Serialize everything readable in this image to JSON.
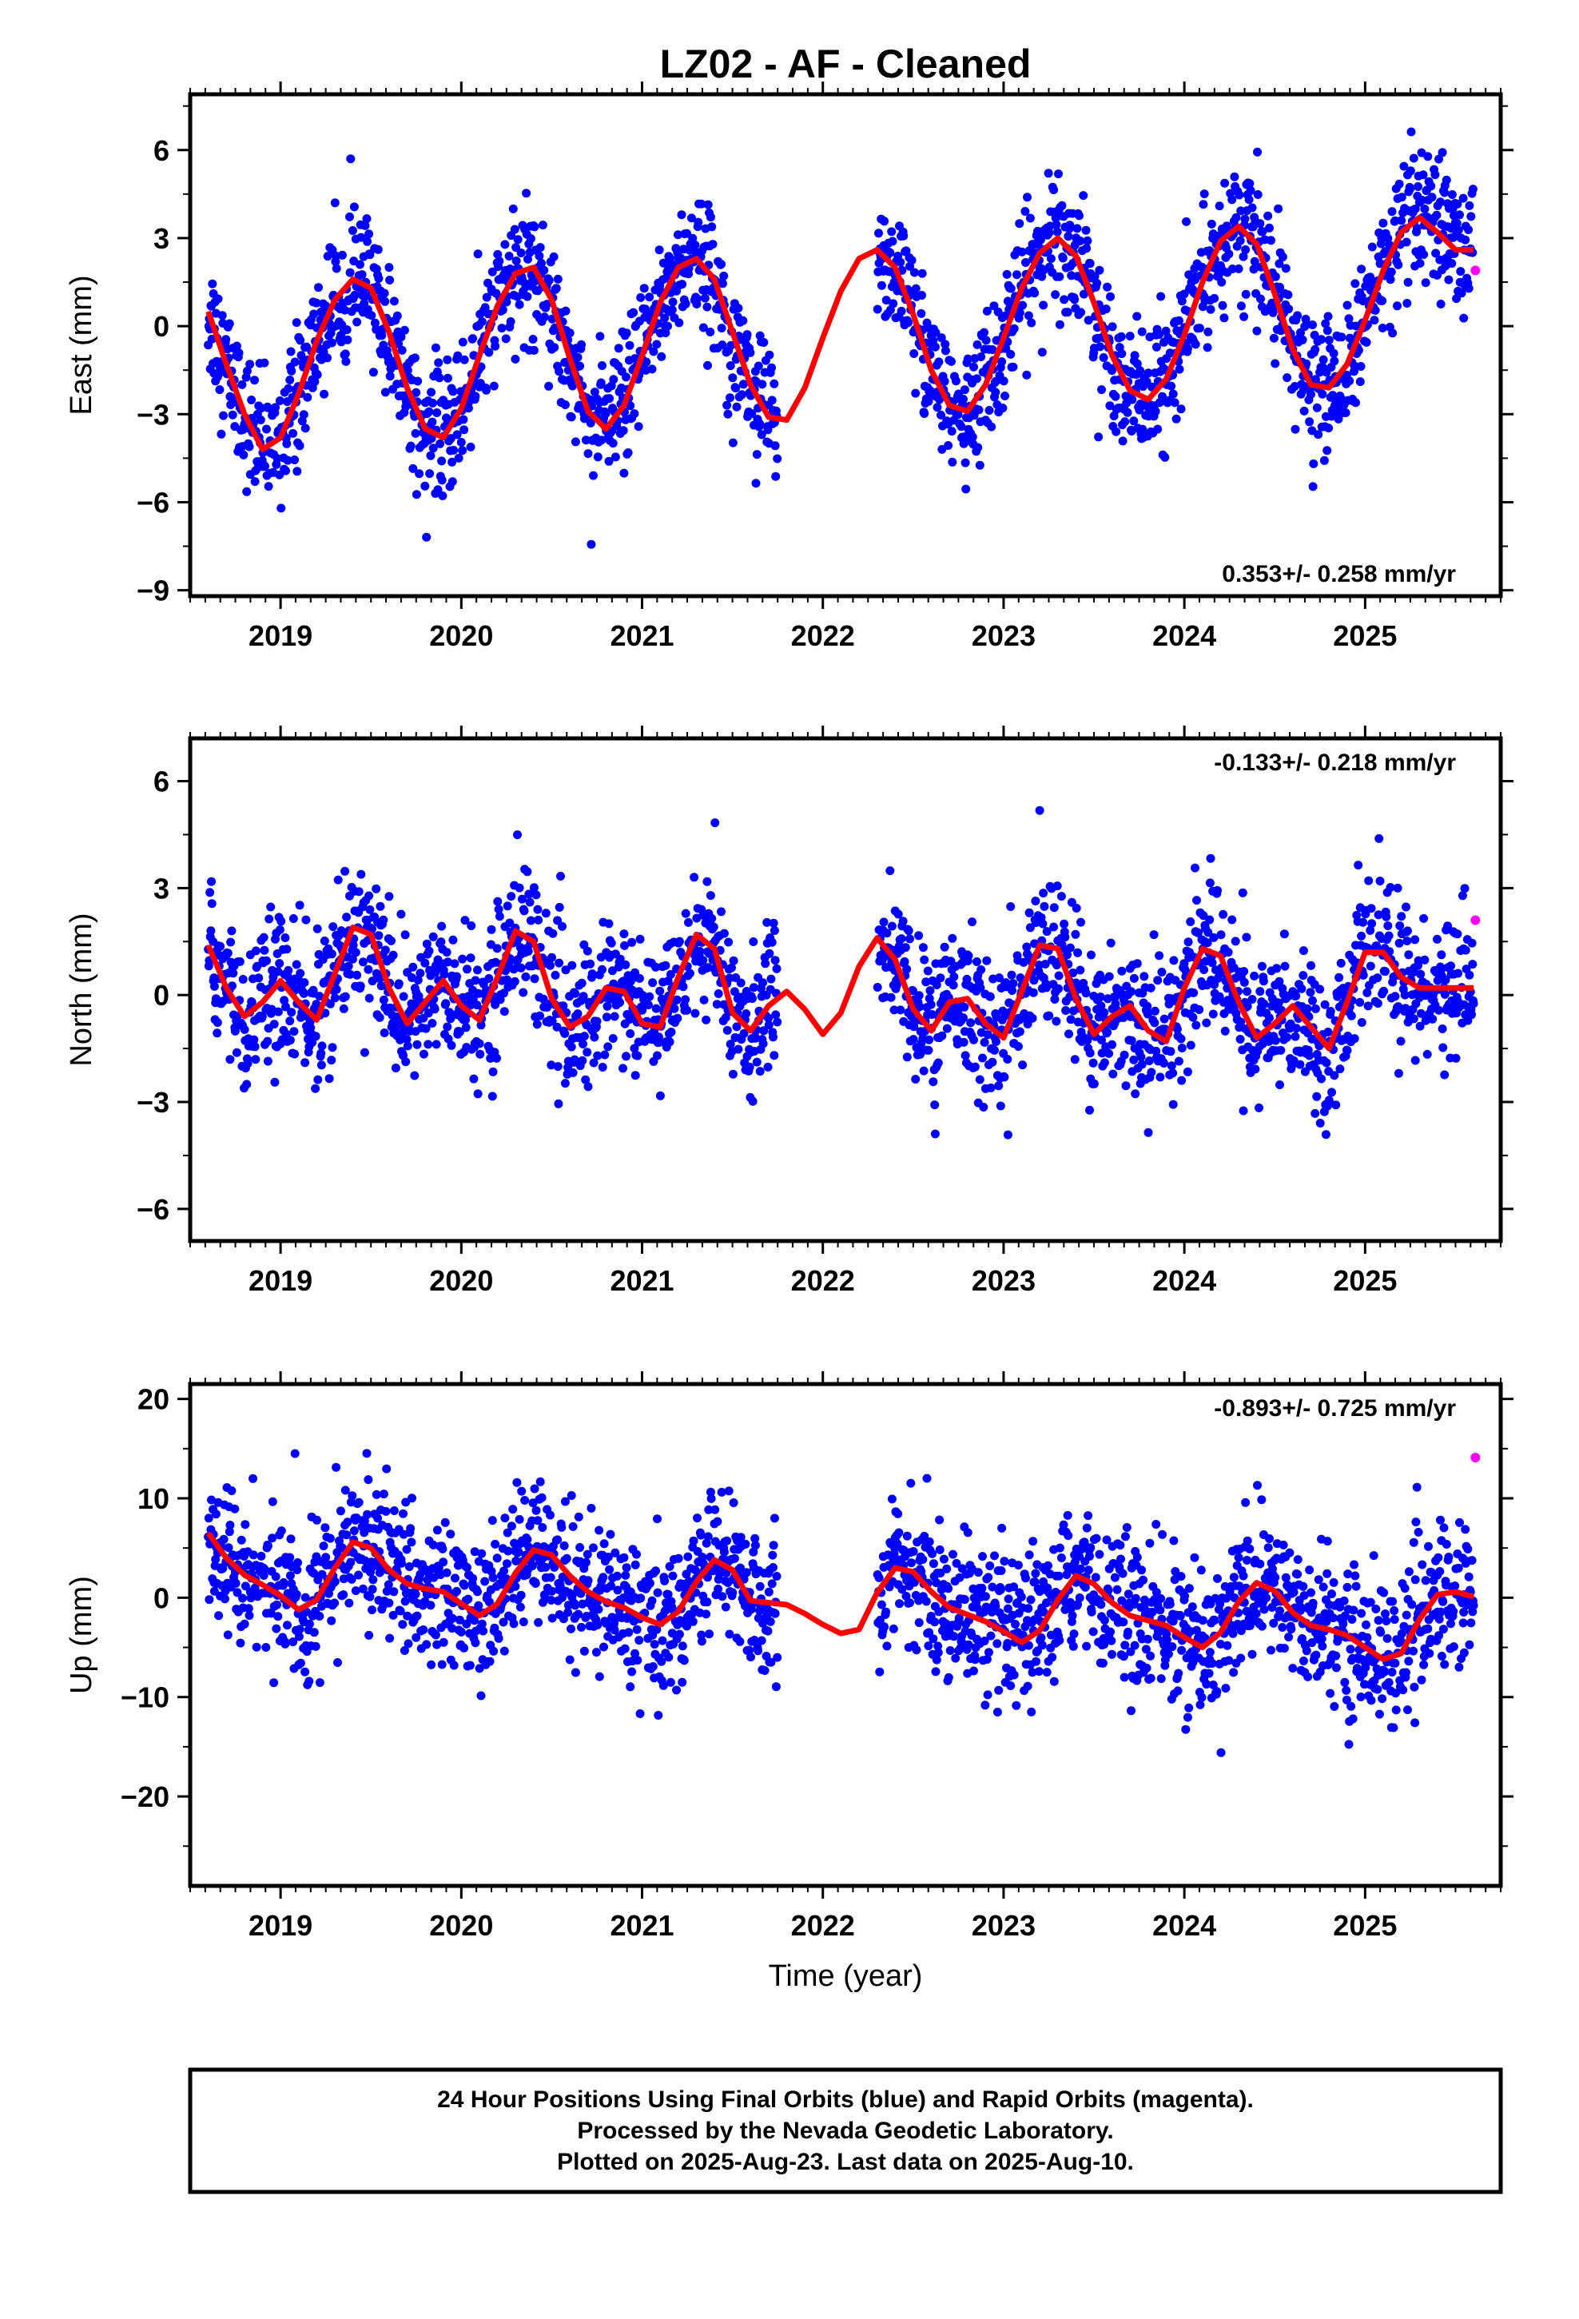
{
  "title": "LZ02  - AF - Cleaned",
  "x_axis_label": "Time (year)",
  "footer": {
    "lines": [
      "24 Hour Positions Using Final Orbits (blue) and Rapid Orbits (magenta).",
      "Processed by the Nevada Geodetic Laboratory.",
      "Plotted on 2025-Aug-23. Last data on 2025-Aug-10."
    ]
  },
  "colors": {
    "final_orbits": "#0000ff",
    "rapid_orbits": "#ff00ff",
    "model_fit": "#ff0000",
    "frame": "#000000"
  },
  "chart_data": [
    {
      "type": "scatter",
      "component": "east",
      "ylabel": "East (mm)",
      "ylim": [
        -9.2,
        7.9
      ],
      "yticks": [
        6,
        3,
        0,
        -3,
        -6,
        -9
      ],
      "ytick_labels": [
        "6",
        "3",
        "0",
        "−3",
        "−6",
        "−9"
      ],
      "xlim": [
        2018.5,
        2025.75
      ],
      "xticks": [
        2019,
        2020,
        2021,
        2022,
        2023,
        2024,
        2025
      ],
      "xtick_labels": [
        "2019",
        "2020",
        "2021",
        "2022",
        "2023",
        "2024",
        "2025"
      ],
      "rate_text": "0.353+/- 0.258 mm/yr",
      "rate_placement": "bottom-right",
      "data_gap": [
        2021.75,
        2022.3
      ],
      "model": {
        "name": "model fit",
        "x": [
          2018.6,
          2018.7,
          2018.8,
          2018.9,
          2019.0,
          2019.1,
          2019.2,
          2019.3,
          2019.4,
          2019.5,
          2019.6,
          2019.7,
          2019.8,
          2019.9,
          2020.0,
          2020.1,
          2020.2,
          2020.3,
          2020.4,
          2020.5,
          2020.6,
          2020.7,
          2020.8,
          2020.9,
          2021.0,
          2021.1,
          2021.2,
          2021.3,
          2021.4,
          2021.5,
          2021.6,
          2021.7,
          2021.8,
          2021.9,
          2022.0,
          2022.1,
          2022.2,
          2022.3,
          2022.4,
          2022.5,
          2022.6,
          2022.7,
          2022.8,
          2022.9,
          2023.0,
          2023.1,
          2023.2,
          2023.3,
          2023.4,
          2023.5,
          2023.6,
          2023.7,
          2023.8,
          2023.9,
          2024.0,
          2024.1,
          2024.2,
          2024.3,
          2024.4,
          2024.5,
          2024.6,
          2024.7,
          2024.8,
          2024.9,
          2025.0,
          2025.1,
          2025.2,
          2025.3,
          2025.4,
          2025.5,
          2025.6
        ],
        "y": [
          0.5,
          -1.3,
          -3.0,
          -4.2,
          -3.8,
          -2.3,
          -0.5,
          0.9,
          1.6,
          1.3,
          -0.2,
          -2.1,
          -3.5,
          -3.8,
          -2.8,
          -1.0,
          0.7,
          1.8,
          2.0,
          0.9,
          -1.1,
          -2.9,
          -3.5,
          -2.7,
          -1.0,
          0.8,
          2.0,
          2.3,
          1.6,
          -0.2,
          -2.0,
          -3.1,
          -3.2,
          -2.1,
          -0.4,
          1.2,
          2.3,
          2.6,
          2.0,
          0.4,
          -1.5,
          -2.7,
          -2.9,
          -2.0,
          -0.4,
          1.3,
          2.5,
          3.0,
          2.4,
          0.8,
          -1.0,
          -2.2,
          -2.5,
          -1.8,
          -0.3,
          1.5,
          2.9,
          3.4,
          2.8,
          1.1,
          -0.8,
          -2.0,
          -2.1,
          -1.3,
          0.2,
          1.9,
          3.2,
          3.7,
          3.2,
          2.6,
          2.6
        ]
      },
      "rapid_points": {
        "x": [
          2025.61
        ],
        "y": [
          1.9
        ]
      }
    },
    {
      "type": "scatter",
      "component": "north",
      "ylabel": "North (mm)",
      "ylim": [
        -6.9,
        7.2
      ],
      "yticks": [
        6,
        3,
        0,
        -3,
        -6
      ],
      "ytick_labels": [
        "6",
        "3",
        "0",
        "−3",
        "−6"
      ],
      "xlim": [
        2018.5,
        2025.75
      ],
      "xticks": [
        2019,
        2020,
        2021,
        2022,
        2023,
        2024,
        2025
      ],
      "xtick_labels": [
        "2019",
        "2020",
        "2021",
        "2022",
        "2023",
        "2024",
        "2025"
      ],
      "rate_text": "-0.133+/- 0.218 mm/yr",
      "rate_placement": "top-right",
      "data_gap": [
        2021.75,
        2022.3
      ],
      "model": {
        "name": "model fit",
        "x": [
          2018.6,
          2018.7,
          2018.8,
          2018.9,
          2019.0,
          2019.1,
          2019.2,
          2019.3,
          2019.4,
          2019.5,
          2019.6,
          2019.7,
          2019.8,
          2019.9,
          2020.0,
          2020.1,
          2020.2,
          2020.3,
          2020.4,
          2020.5,
          2020.6,
          2020.7,
          2020.8,
          2020.9,
          2021.0,
          2021.1,
          2021.2,
          2021.3,
          2021.4,
          2021.5,
          2021.6,
          2021.7,
          2021.8,
          2021.9,
          2022.0,
          2022.1,
          2022.2,
          2022.3,
          2022.4,
          2022.5,
          2022.6,
          2022.7,
          2022.8,
          2022.9,
          2023.0,
          2023.1,
          2023.2,
          2023.3,
          2023.4,
          2023.5,
          2023.6,
          2023.7,
          2023.8,
          2023.9,
          2024.0,
          2024.1,
          2024.2,
          2024.3,
          2024.4,
          2024.5,
          2024.6,
          2024.7,
          2024.8,
          2024.9,
          2025.0,
          2025.1,
          2025.2,
          2025.3,
          2025.4,
          2025.5,
          2025.6
        ],
        "y": [
          1.4,
          0.2,
          -0.6,
          -0.2,
          0.4,
          -0.2,
          -0.7,
          0.6,
          1.9,
          1.7,
          0.2,
          -0.8,
          -0.2,
          0.4,
          -0.3,
          -0.7,
          0.5,
          1.8,
          1.5,
          -0.1,
          -0.9,
          -0.6,
          0.2,
          0.1,
          -0.8,
          -0.9,
          0.5,
          1.7,
          1.3,
          -0.5,
          -1.0,
          -0.3,
          0.1,
          -0.4,
          -1.1,
          -0.5,
          0.8,
          1.6,
          1.0,
          -0.4,
          -1.0,
          -0.2,
          -0.1,
          -0.8,
          -1.2,
          0.1,
          1.4,
          1.3,
          -0.1,
          -1.1,
          -0.6,
          -0.3,
          -1.0,
          -1.3,
          0.2,
          1.3,
          1.1,
          -0.2,
          -1.2,
          -0.8,
          -0.3,
          -0.9,
          -1.5,
          -0.2,
          1.2,
          1.2,
          0.5,
          0.2,
          0.2,
          0.2,
          0.2
        ]
      },
      "rapid_points": {
        "x": [
          2025.61
        ],
        "y": [
          2.1
        ]
      }
    },
    {
      "type": "scatter",
      "component": "up",
      "ylabel": "Up (mm)",
      "ylim": [
        -29,
        21.5
      ],
      "yticks": [
        20,
        10,
        0,
        -10,
        -20
      ],
      "ytick_labels": [
        "20",
        "10",
        "0",
        "−10",
        "−20"
      ],
      "xlim": [
        2018.5,
        2025.75
      ],
      "xticks": [
        2019,
        2020,
        2021,
        2022,
        2023,
        2024,
        2025
      ],
      "xtick_labels": [
        "2019",
        "2020",
        "2021",
        "2022",
        "2023",
        "2024",
        "2025"
      ],
      "xlabel": "Time (year)",
      "rate_text": "-0.893+/- 0.725 mm/yr",
      "rate_placement": "top-right",
      "data_gap": [
        2021.75,
        2022.3
      ],
      "model": {
        "name": "model fit",
        "x": [
          2018.6,
          2018.7,
          2018.8,
          2018.9,
          2019.0,
          2019.1,
          2019.2,
          2019.3,
          2019.4,
          2019.5,
          2019.6,
          2019.7,
          2019.8,
          2019.9,
          2020.0,
          2020.1,
          2020.2,
          2020.3,
          2020.4,
          2020.5,
          2020.6,
          2020.7,
          2020.8,
          2020.9,
          2021.0,
          2021.1,
          2021.2,
          2021.3,
          2021.4,
          2021.5,
          2021.6,
          2021.7,
          2021.8,
          2021.9,
          2022.0,
          2022.1,
          2022.2,
          2022.3,
          2022.4,
          2022.5,
          2022.6,
          2022.7,
          2022.8,
          2022.9,
          2023.0,
          2023.1,
          2023.2,
          2023.3,
          2023.4,
          2023.5,
          2023.6,
          2023.7,
          2023.8,
          2023.9,
          2024.0,
          2024.1,
          2024.2,
          2024.3,
          2024.4,
          2024.5,
          2024.6,
          2024.7,
          2024.8,
          2024.9,
          2025.0,
          2025.1,
          2025.2,
          2025.3,
          2025.4,
          2025.5,
          2025.6
        ],
        "y": [
          6.5,
          4.0,
          2.3,
          1.3,
          0.2,
          -1.2,
          -0.2,
          3.0,
          5.6,
          5.0,
          2.8,
          1.4,
          0.9,
          0.6,
          -0.6,
          -1.8,
          -0.6,
          2.5,
          4.8,
          4.3,
          2.2,
          0.6,
          -0.4,
          -1.0,
          -2.0,
          -2.7,
          -1.4,
          1.6,
          3.8,
          2.8,
          -0.3,
          -0.5,
          -0.7,
          -1.6,
          -2.7,
          -3.6,
          -3.2,
          0.5,
          3.0,
          2.6,
          0.6,
          -1.0,
          -1.7,
          -2.4,
          -3.4,
          -4.5,
          -3.3,
          -0.2,
          2.2,
          1.4,
          -0.5,
          -1.8,
          -2.3,
          -2.8,
          -4.0,
          -5.0,
          -3.5,
          -0.4,
          1.5,
          0.7,
          -1.5,
          -2.8,
          -3.2,
          -3.8,
          -5.0,
          -6.2,
          -5.6,
          -2.2,
          0.3,
          0.6,
          0.1
        ]
      },
      "rapid_points": {
        "x": [
          2025.61
        ],
        "y": [
          14.1
        ]
      }
    }
  ]
}
